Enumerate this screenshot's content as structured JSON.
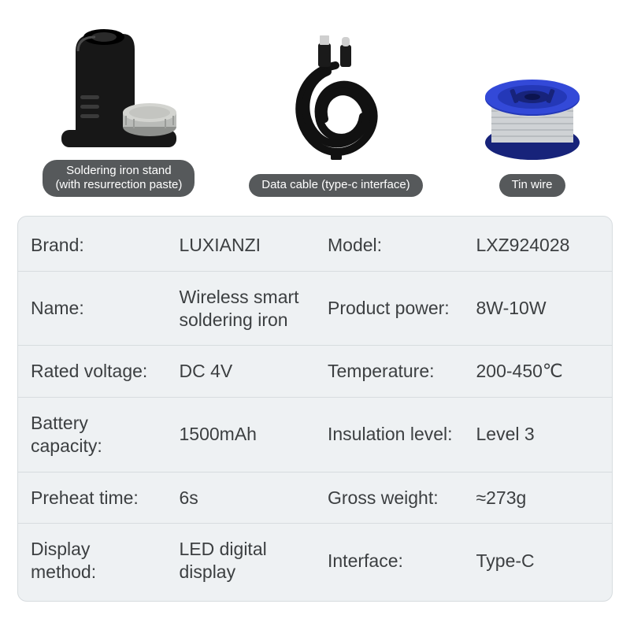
{
  "products": {
    "stand_label": "Soldering iron stand\n(with resurrection paste)",
    "cable_label": "Data cable (type-c interface)",
    "wire_label": "Tin wire"
  },
  "colors": {
    "pill_bg": "#56595b",
    "pill_text": "#ffffff",
    "card_bg": "#eef1f3",
    "card_border": "#d7dcdf",
    "text": "#3c3f41",
    "stand_body": "#171717",
    "stand_highlight": "#3a3a3a",
    "cap_metal": "#b9bbb8",
    "cable_black": "#111111",
    "spool_blue": "#2438b8",
    "spool_blue_dark": "#17237a",
    "wire_silver": "#cfd2d5"
  },
  "specs": [
    {
      "l1": "Brand:",
      "v1": "LUXIANZI",
      "l2": "Model:",
      "v2": "LXZ924028"
    },
    {
      "l1": "Name:",
      "v1": "Wireless smart\nsoldering iron",
      "l2": "Product power:",
      "v2": "8W-10W"
    },
    {
      "l1": "Rated voltage:",
      "v1": "DC 4V",
      "l2": "Temperature:",
      "v2": "200-450℃"
    },
    {
      "l1": "Battery capacity:",
      "v1": "1500mAh",
      "l2": "Insulation level:",
      "v2": "Level 3"
    },
    {
      "l1": "Preheat time:",
      "v1": "6s",
      "l2": "Gross weight:",
      "v2": "≈273g"
    },
    {
      "l1": "Display method:",
      "v1": "LED digital\ndisplay",
      "l2": "Interface:",
      "v2": "Type-C"
    }
  ]
}
